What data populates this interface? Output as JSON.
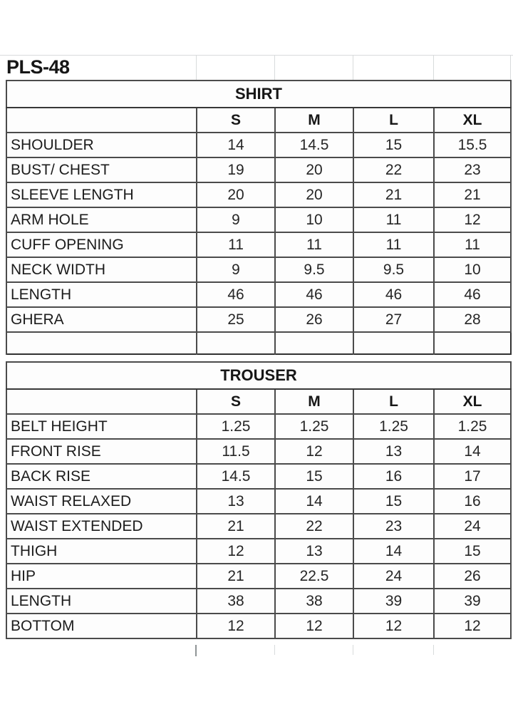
{
  "page_title": "PLS-48",
  "size_chart": {
    "tables": [
      {
        "name": "SHIRT",
        "sizes": [
          "S",
          "M",
          "L",
          "XL"
        ],
        "rows": [
          {
            "label": "SHOULDER",
            "values": [
              "14",
              "14.5",
              "15",
              "15.5"
            ]
          },
          {
            "label": "BUST/ CHEST",
            "values": [
              "19",
              "20",
              "22",
              "23"
            ]
          },
          {
            "label": "SLEEVE LENGTH",
            "values": [
              "20",
              "20",
              "21",
              "21"
            ]
          },
          {
            "label": "ARM HOLE",
            "values": [
              "9",
              "10",
              "11",
              "12"
            ]
          },
          {
            "label": "CUFF OPENING",
            "values": [
              "11",
              "11",
              "11",
              "11"
            ]
          },
          {
            "label": "NECK WIDTH",
            "values": [
              "9",
              "9.5",
              "9.5",
              "10"
            ]
          },
          {
            "label": "LENGTH",
            "values": [
              "46",
              "46",
              "46",
              "46"
            ]
          },
          {
            "label": "GHERA",
            "values": [
              "25",
              "26",
              "27",
              "28"
            ]
          }
        ]
      },
      {
        "name": "TROUSER",
        "sizes": [
          "S",
          "M",
          "L",
          "XL"
        ],
        "rows": [
          {
            "label": "BELT HEIGHT",
            "values": [
              "1.25",
              "1.25",
              "1.25",
              "1.25"
            ]
          },
          {
            "label": "FRONT RISE",
            "values": [
              "11.5",
              "12",
              "13",
              "14"
            ]
          },
          {
            "label": "BACK RISE",
            "values": [
              "14.5",
              "15",
              "16",
              "17"
            ]
          },
          {
            "label": "WAIST RELAXED",
            "values": [
              "13",
              "14",
              "15",
              "16"
            ]
          },
          {
            "label": "WAIST EXTENDED",
            "values": [
              "21",
              "22",
              "23",
              "24"
            ]
          },
          {
            "label": "THIGH",
            "values": [
              "12",
              "13",
              "14",
              "15"
            ]
          },
          {
            "label": "HIP",
            "values": [
              "21",
              "22.5",
              "24",
              "26"
            ]
          },
          {
            "label": "LENGTH",
            "values": [
              "38",
              "38",
              "39",
              "39"
            ]
          },
          {
            "label": "BOTTOM",
            "values": [
              "12",
              "12",
              "12",
              "12"
            ]
          }
        ]
      }
    ]
  }
}
